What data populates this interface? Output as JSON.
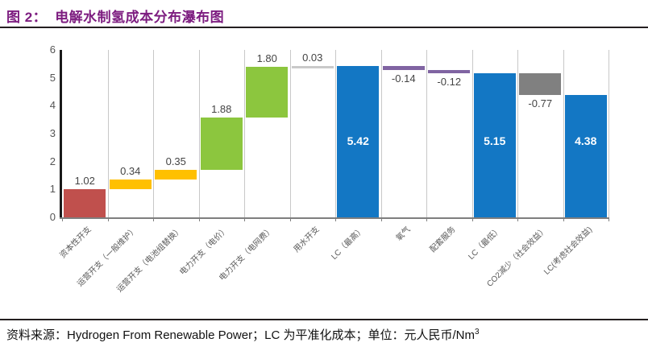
{
  "header": {
    "figure_label": "图 2：",
    "title": "电解水制氢成本分布瀑布图"
  },
  "footer": {
    "source_text": "资料来源：Hydrogen From Renewable Power；LC 为平准化成本；单位：元人民币/Nm",
    "superscript": "3"
  },
  "chart_data": {
    "type": "bar",
    "subtype": "waterfall",
    "title": "电解水制氢成本分布瀑布图",
    "xlabel": "",
    "ylabel": "",
    "unit": "元人民币/Nm3",
    "ylim": [
      0,
      6
    ],
    "yticks": [
      0,
      1,
      2,
      3,
      4,
      5,
      6
    ],
    "grid": "vertical-only",
    "legend": "none",
    "palette": {
      "red": "#C0504D",
      "yellow": "#FFC000",
      "green": "#8CC63E",
      "blue": "#1377C4",
      "purple": "#8064A2",
      "gray": "#808080",
      "thin": "#C9C9C9"
    },
    "categories": [
      "资本性开支",
      "运营开支（一般维护）",
      "运营开支（电池组替换）",
      "电力开支（电价）",
      "电力开支（电网费）",
      "用水开支",
      "LC（最高）",
      "氧气",
      "配套服务",
      "LC（最低）",
      "CO2减少（社会效益）",
      "LC(考虑社会效益)"
    ],
    "bars": [
      {
        "category": "资本性开支",
        "display": "1.02",
        "value": 1.02,
        "start": 0,
        "end": 1.02,
        "color": "red",
        "label_pos": "above"
      },
      {
        "category": "运营开支（一般维护）",
        "display": "0.34",
        "value": 0.34,
        "start": 1.02,
        "end": 1.36,
        "color": "yellow",
        "label_pos": "above"
      },
      {
        "category": "运营开支（电池组替换）",
        "display": "0.35",
        "value": 0.35,
        "start": 1.36,
        "end": 1.71,
        "color": "yellow",
        "label_pos": "above"
      },
      {
        "category": "电力开支（电价）",
        "display": "1.88",
        "value": 1.88,
        "start": 1.71,
        "end": 3.59,
        "color": "green",
        "label_pos": "above"
      },
      {
        "category": "电力开支（电网费）",
        "display": "1.80",
        "value": 1.8,
        "start": 3.59,
        "end": 5.39,
        "color": "green",
        "label_pos": "above"
      },
      {
        "category": "用水开支",
        "display": "0.03",
        "value": 0.03,
        "start": 5.39,
        "end": 5.42,
        "color": "thin",
        "label_pos": "above"
      },
      {
        "category": "LC（最高）",
        "display": "5.42",
        "value": 5.42,
        "start": 0,
        "end": 5.42,
        "color": "blue",
        "label_pos": "inside"
      },
      {
        "category": "氧气",
        "display": "-0.14",
        "value": -0.14,
        "start": 5.28,
        "end": 5.42,
        "color": "purple",
        "label_pos": "below"
      },
      {
        "category": "配套服务",
        "display": "-0.12",
        "value": -0.12,
        "start": 5.16,
        "end": 5.28,
        "color": "purple",
        "label_pos": "below"
      },
      {
        "category": "LC（最低）",
        "display": "5.15",
        "value": 5.15,
        "start": 0,
        "end": 5.15,
        "color": "blue",
        "label_pos": "inside"
      },
      {
        "category": "CO2减少（社会效益）",
        "display": "-0.77",
        "value": -0.77,
        "start": 4.38,
        "end": 5.15,
        "color": "gray",
        "label_pos": "below"
      },
      {
        "category": "LC(考虑社会效益)",
        "display": "4.38",
        "value": 4.38,
        "start": 0,
        "end": 4.38,
        "color": "blue",
        "label_pos": "inside"
      }
    ]
  }
}
